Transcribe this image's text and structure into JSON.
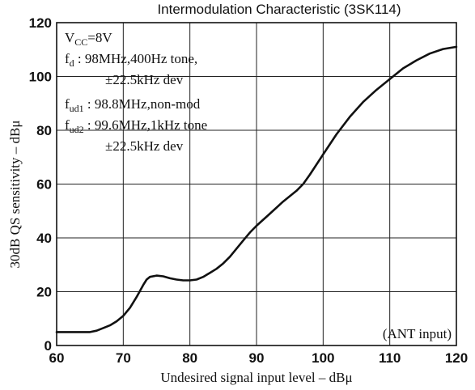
{
  "chart_data": {
    "type": "line",
    "title": "Intermodulation Characteristic (3SK114)",
    "xlabel": "Undesired signal input level  –  dBμ",
    "ylabel": "30dB QS sensitivity  –  dBμ",
    "xlim": [
      60,
      120
    ],
    "ylim": [
      0,
      120
    ],
    "x_ticks": [
      "60",
      "70",
      "80",
      "90",
      "100",
      "110",
      "120"
    ],
    "y_ticks": [
      "0",
      "20",
      "40",
      "60",
      "80",
      "100",
      "120"
    ],
    "grid": true,
    "series": [
      {
        "x": [
          60,
          62,
          64,
          65,
          66,
          67,
          68,
          69,
          70,
          71,
          72,
          73,
          73.5,
          74,
          75,
          76,
          77,
          78,
          79,
          80,
          81,
          82,
          83,
          84,
          85,
          86,
          87,
          88,
          89,
          90,
          92,
          94,
          96,
          97,
          98,
          100,
          102,
          104,
          106,
          108,
          110,
          112,
          114,
          116,
          118,
          120
        ],
        "values": [
          5,
          5,
          5,
          5,
          5.5,
          6.5,
          7.5,
          9,
          11,
          14,
          18,
          22.5,
          24.5,
          25.5,
          26,
          25.7,
          25,
          24.5,
          24.2,
          24.2,
          24.5,
          25.5,
          27,
          28.5,
          30.5,
          33,
          36,
          39,
          42,
          44.5,
          49,
          53.5,
          57.5,
          60,
          63.5,
          71,
          78.5,
          85,
          90.5,
          95,
          99,
          103,
          106,
          108.5,
          110.2,
          111
        ]
      }
    ],
    "annotations": {
      "vcc": {
        "main": "V",
        "sub": "CC",
        "rest": "=8V"
      },
      "fd": {
        "main": "f",
        "sub": "d",
        "rest": " :   98MHz,400Hz tone,"
      },
      "fd_cont": "±22.5kHz dev",
      "fud1": {
        "main": "f",
        "sub": "ud1",
        "rest": " : 98.8MHz,non-mod"
      },
      "fud2": {
        "main": "f",
        "sub": "ud2",
        "rest": " : 99.6MHz,1kHz tone"
      },
      "fud2_cont": "±22.5kHz dev",
      "input": "(ANT input)"
    }
  }
}
